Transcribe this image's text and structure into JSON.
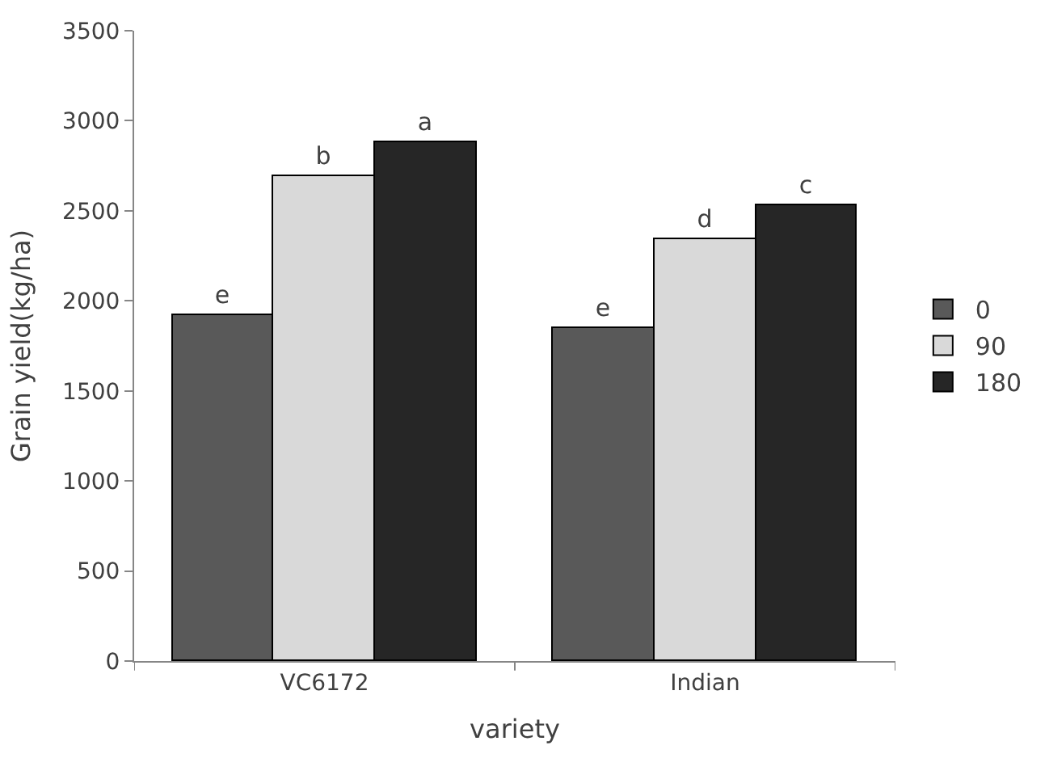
{
  "chart_data": {
    "type": "bar",
    "xlabel": "variety",
    "ylabel": "Grain yield(kg/ha)",
    "categories": [
      "VC6172",
      "Indian"
    ],
    "series": [
      {
        "name": "0",
        "color": "#595959",
        "values": [
          1920,
          1850
        ],
        "value_labels": [
          "e",
          "e"
        ]
      },
      {
        "name": "90",
        "color": "#d9d9d9",
        "values": [
          2690,
          2340
        ],
        "value_labels": [
          "b",
          "d"
        ]
      },
      {
        "name": "180",
        "color": "#262626",
        "values": [
          2880,
          2530
        ],
        "value_labels": [
          "a",
          "c"
        ]
      }
    ],
    "ylim": [
      0,
      3500
    ],
    "yticks": [
      0,
      500,
      1000,
      1500,
      2000,
      2500,
      3000,
      3500
    ],
    "grid": false,
    "legend": "right"
  }
}
